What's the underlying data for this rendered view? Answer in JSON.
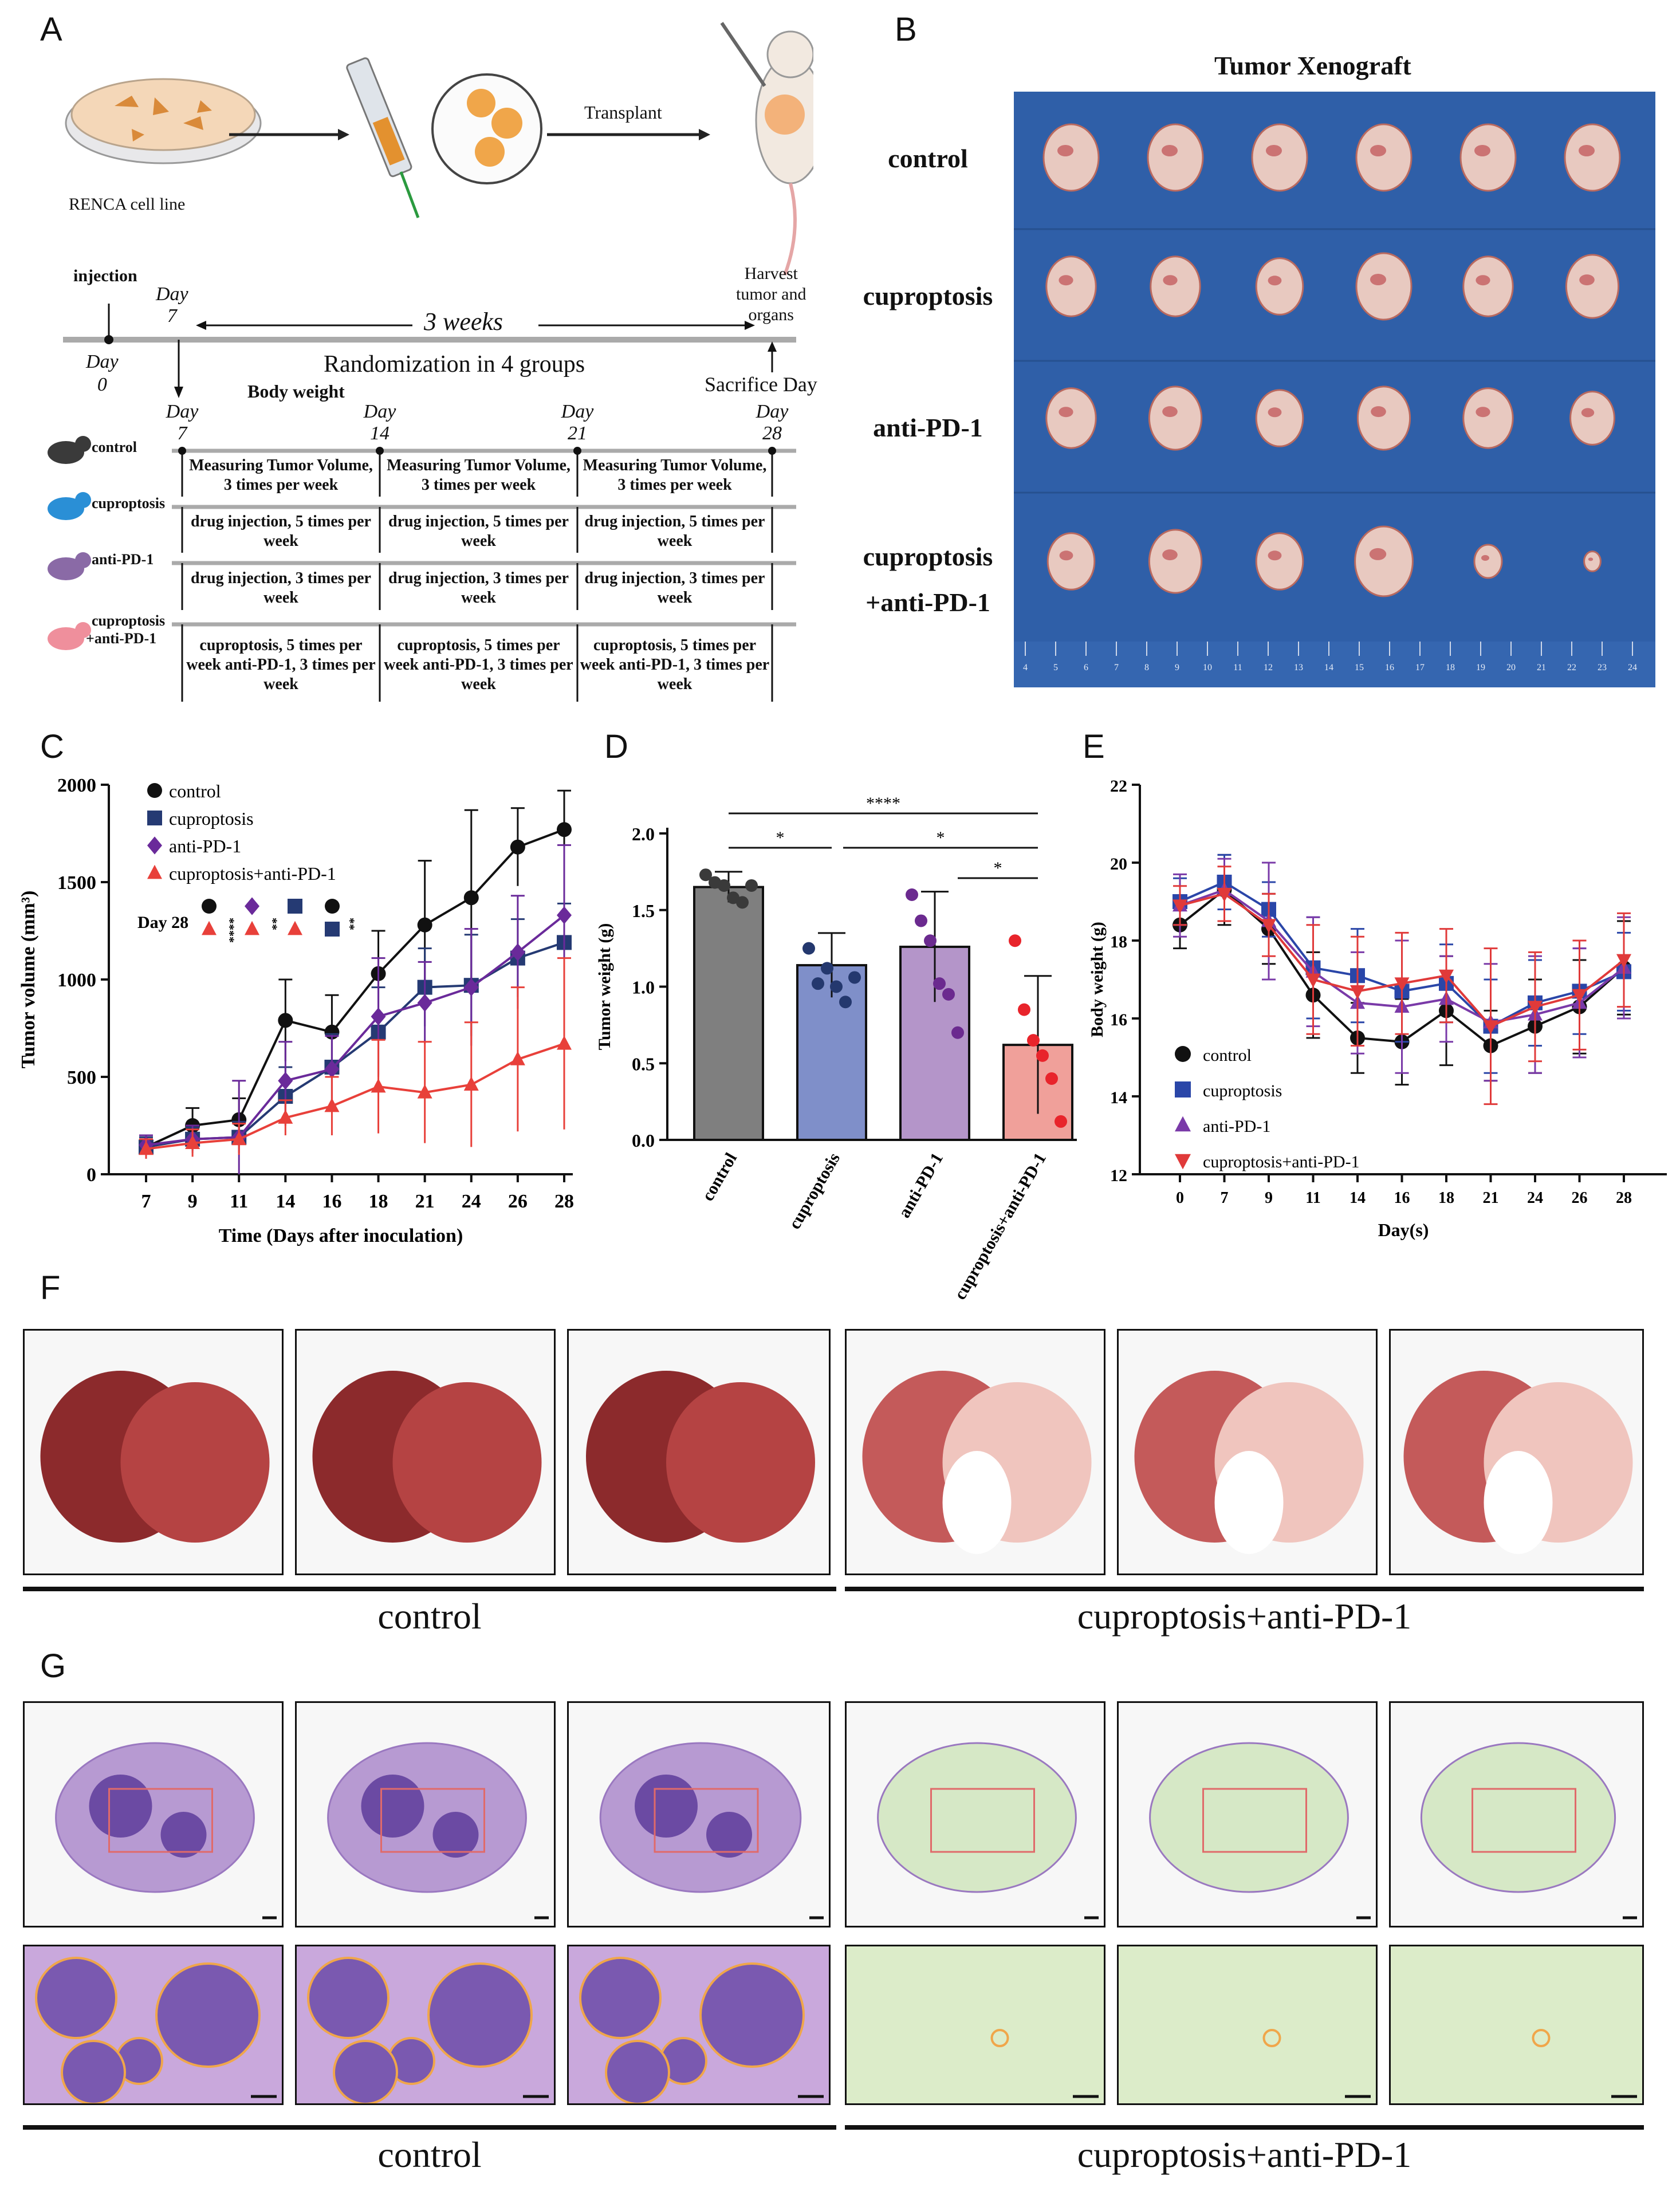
{
  "panel_labels": {
    "A": "A",
    "B": "B",
    "C": "C",
    "D": "D",
    "E": "E",
    "F": "F",
    "G": "G"
  },
  "panelA": {
    "cell_line": "RENCA cell line",
    "transplant": "Transplant",
    "injection": "injection",
    "day7_top": "Day",
    "day7_top_num": "7",
    "three_weeks": "3 weeks",
    "harvest": [
      "Harvest",
      "tumor and",
      "organs"
    ],
    "day0": "Day",
    "day0_num": "0",
    "randomization": "Randomization in 4 groups",
    "sacrifice": "Sacrifice Day",
    "body_weight": "Body weight",
    "day_labels": [
      {
        "t": "Day",
        "n": "7"
      },
      {
        "t": "Day",
        "n": "14"
      },
      {
        "t": "Day",
        "n": "21"
      },
      {
        "t": "Day",
        "n": "28"
      }
    ],
    "groups": [
      {
        "name": "control",
        "name2": "",
        "color": "#3a3a3a",
        "cells": [
          "Measuring Tumor Volume, 3 times per week",
          "Measuring Tumor Volume, 3 times per week",
          "Measuring Tumor Volume, 3 times per week"
        ]
      },
      {
        "name": "cuproptosis",
        "name2": "",
        "color": "#2a8fd6",
        "cells": [
          "drug injection, 5 times per week",
          "drug injection, 5 times per week",
          "drug injection, 5 times per week"
        ]
      },
      {
        "name": "anti-PD-1",
        "name2": "",
        "color": "#8a6aa6",
        "cells": [
          "drug injection, 3 times per week",
          "drug injection, 3 times per week",
          "drug injection, 3 times per week"
        ]
      },
      {
        "name": "cuproptosis",
        "name2": "+anti-PD-1",
        "color": "#ef8f9c",
        "cells": [
          "cuproptosis, 5 times per week anti-PD-1, 3 times per week",
          "cuproptosis, 5 times per week anti-PD-1, 3 times per week",
          "cuproptosis, 5 times per week anti-PD-1, 3 times per week"
        ]
      }
    ]
  },
  "panelB": {
    "title": "Tumor Xenograft",
    "rows": [
      "control",
      "cuproptosis",
      "anti-PD-1",
      "cuproptosis\n+anti-PD-1"
    ],
    "ruler_ticks": [
      "4",
      "5",
      "6",
      "7",
      "8",
      "9",
      "10",
      "11",
      "12",
      "13",
      "14",
      "15",
      "16",
      "17",
      "18",
      "19",
      "20",
      "21",
      "22",
      "23",
      "24"
    ],
    "colors": {
      "background": "#2f5fa8",
      "tumor": "#e8c9c0"
    }
  },
  "chart_data": [
    {
      "id": "C",
      "type": "line",
      "xlabel": "Time (Days after inoculation)",
      "ylabel": "Tumor volume (mm³)",
      "x": [
        7,
        9,
        11,
        14,
        16,
        18,
        21,
        24,
        26,
        28
      ],
      "ylim": [
        0,
        2000
      ],
      "yticks": [
        0,
        500,
        1000,
        1500,
        2000
      ],
      "annotation": "Day 28",
      "annotation_sig": [
        "****",
        "**",
        "**"
      ],
      "series": [
        {
          "name": "control",
          "color": "#111111",
          "marker": "circle",
          "values": [
            140,
            250,
            280,
            790,
            730,
            1030,
            1280,
            1420,
            1680,
            1770
          ],
          "err": [
            60,
            90,
            110,
            210,
            190,
            220,
            330,
            450,
            200,
            200
          ]
        },
        {
          "name": "cuproptosis",
          "color": "#253a73",
          "marker": "square",
          "values": [
            140,
            180,
            190,
            400,
            550,
            730,
            960,
            970,
            1110,
            1190
          ],
          "err": [
            50,
            60,
            80,
            150,
            170,
            230,
            200,
            260,
            200,
            200
          ]
        },
        {
          "name": "anti-PD-1",
          "color": "#6a2a9a",
          "marker": "diamond",
          "values": [
            150,
            180,
            190,
            480,
            540,
            810,
            880,
            960,
            1140,
            1330
          ],
          "err": [
            50,
            70,
            290,
            200,
            170,
            300,
            210,
            300,
            290,
            360
          ]
        },
        {
          "name": "cuproptosis+anti-PD-1",
          "color": "#e8403a",
          "marker": "triangle",
          "values": [
            130,
            160,
            180,
            290,
            350,
            450,
            420,
            460,
            590,
            670
          ],
          "err": [
            50,
            70,
            80,
            90,
            150,
            240,
            260,
            320,
            370,
            440
          ]
        }
      ]
    },
    {
      "id": "D",
      "type": "bar",
      "ylabel": "Tumor weight (g)",
      "categories": [
        "control",
        "cuproptosis",
        "anti-PD-1",
        "cuproptosis+anti-PD-1"
      ],
      "values": [
        1.65,
        1.14,
        1.26,
        0.62
      ],
      "err": [
        0.1,
        0.21,
        0.36,
        0.45
      ],
      "ylim": [
        0,
        2.0
      ],
      "yticks": [
        0.0,
        0.5,
        1.0,
        1.5,
        2.0
      ],
      "colors": [
        "#7f7f7f",
        "#7f8fc9",
        "#b495c9",
        "#f0a09a"
      ],
      "point_colors": [
        "#3a3a3a",
        "#24386e",
        "#6b2a8f",
        "#e8242b"
      ],
      "points": [
        [
          1.73,
          1.68,
          1.66,
          1.58,
          1.55,
          1.66
        ],
        [
          1.25,
          1.02,
          1.12,
          1.0,
          0.9,
          1.06
        ],
        [
          1.6,
          1.43,
          1.3,
          1.02,
          0.95,
          0.7
        ],
        [
          1.3,
          0.85,
          0.65,
          0.55,
          0.4,
          0.12
        ]
      ],
      "significance": [
        {
          "from": 0,
          "to": 3,
          "label": "****"
        },
        {
          "from": 0,
          "to": 1,
          "label": "*"
        },
        {
          "from": 1,
          "to": 3,
          "label": "*"
        },
        {
          "from": 2,
          "to": 3,
          "label": "*"
        }
      ]
    },
    {
      "id": "E",
      "type": "line",
      "xlabel": "Day(s)",
      "ylabel": "Body weight (g)",
      "x_labels": [
        "0",
        "7",
        "9",
        "11",
        "14",
        "16",
        "18",
        "21",
        "24",
        "26",
        "28"
      ],
      "ylim": [
        12,
        22
      ],
      "yticks": [
        12,
        14,
        16,
        18,
        20,
        22
      ],
      "series": [
        {
          "name": "control",
          "color": "#111111",
          "marker": "circle",
          "values": [
            18.4,
            19.3,
            18.3,
            16.6,
            15.5,
            15.4,
            16.2,
            15.3,
            15.8,
            16.3,
            17.3
          ],
          "err": [
            0.6,
            0.9,
            0.9,
            1.1,
            0.9,
            1.1,
            1.4,
            0.9,
            1.2,
            1.2,
            1.2
          ]
        },
        {
          "name": "cuproptosis",
          "color": "#2a46a8",
          "marker": "square",
          "values": [
            19.0,
            19.5,
            18.8,
            17.3,
            17.1,
            16.7,
            16.9,
            15.8,
            16.4,
            16.7,
            17.2
          ],
          "err": [
            0.6,
            0.7,
            0.7,
            1.3,
            1.2,
            1.3,
            1.0,
            1.2,
            1.1,
            1.1,
            1.0
          ]
        },
        {
          "name": "anti-PD-1",
          "color": "#7a3aa8",
          "marker": "triangle",
          "values": [
            18.9,
            19.3,
            18.5,
            17.2,
            16.4,
            16.3,
            16.5,
            15.9,
            16.1,
            16.4,
            17.3
          ],
          "err": [
            0.8,
            0.8,
            1.5,
            1.4,
            1.3,
            1.7,
            1.1,
            1.5,
            1.5,
            1.4,
            1.3
          ]
        },
        {
          "name": "cuproptosis+anti-PD-1",
          "color": "#e03a3a",
          "marker": "triangle-down",
          "values": [
            18.9,
            19.2,
            18.4,
            17.0,
            16.7,
            16.9,
            17.1,
            15.8,
            16.3,
            16.6,
            17.5
          ],
          "err": [
            0.5,
            0.7,
            0.8,
            1.4,
            1.4,
            1.3,
            1.2,
            2.0,
            1.4,
            1.4,
            1.2
          ]
        }
      ]
    }
  ],
  "panelF": {
    "left_label": "control",
    "right_label": "cuproptosis+anti-PD-1"
  },
  "panelG": {
    "left_label": "control",
    "right_label": "cuproptosis+anti-PD-1"
  }
}
